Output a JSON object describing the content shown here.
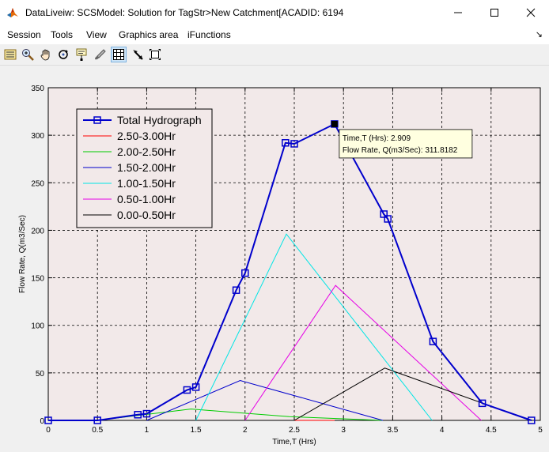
{
  "window": {
    "title": "DataLiveiw: SCSModel: Solution for TagStr>New Catchment[ACADID: 6194",
    "minimize_icon": "minimize-icon",
    "maximize_icon": "maximize-icon",
    "close_icon": "close-icon"
  },
  "menu": {
    "items": [
      "Session",
      "Tools",
      "View",
      "Graphics area",
      "iFunctions"
    ],
    "arrow": "↘"
  },
  "toolbar": {
    "icons": [
      "list-icon",
      "zoom-in-icon",
      "pan-hand-icon",
      "rotate-icon",
      "data-cursor-icon",
      "brush-icon",
      "grid-icon",
      "select-arrow-icon",
      "fit-icon"
    ],
    "active": "grid-icon"
  },
  "colors": {
    "plot_bg": "#f2e9e9",
    "total": "#0000cc"
  },
  "chart_data": {
    "type": "line",
    "xlabel": "Time,T (Hrs)",
    "ylabel": "Flow Rate, Q(m3/Sec)",
    "xlim": [
      0,
      5
    ],
    "ylim": [
      0,
      350
    ],
    "xticks": [
      0,
      0.5,
      1,
      1.5,
      2,
      2.5,
      3,
      3.5,
      4,
      4.5,
      5
    ],
    "yticks": [
      0,
      50,
      100,
      150,
      200,
      250,
      300,
      350
    ],
    "grid": true,
    "legend_position": "top-left",
    "series": [
      {
        "name": "Total Hydrograph",
        "color": "#0000cc",
        "marker": "square",
        "x": [
          0,
          0.5,
          0.91,
          1.0,
          1.41,
          1.5,
          1.91,
          2.0,
          2.41,
          2.5,
          2.909,
          3.41,
          3.45,
          3.91,
          4.41,
          4.91
        ],
        "y": [
          0,
          0,
          6,
          7,
          32,
          35,
          137,
          155,
          292,
          291,
          311.8182,
          217,
          212,
          83,
          18,
          0
        ]
      },
      {
        "name": "2.50-3.00Hr",
        "color": "#ff0000",
        "x": [
          2.5,
          2.91
        ],
        "y": [
          0,
          0
        ]
      },
      {
        "name": "2.00-2.50Hr",
        "color": "#00cc00",
        "x": [
          0.5,
          1.45,
          2.45,
          3.4
        ],
        "y": [
          0,
          12,
          4,
          0
        ]
      },
      {
        "name": "1.50-2.00Hr",
        "color": "#0000cc",
        "x": [
          1.0,
          1.95,
          3.4
        ],
        "y": [
          0,
          42,
          0
        ]
      },
      {
        "name": "1.00-1.50Hr",
        "color": "#00e5e5",
        "x": [
          1.5,
          2.42,
          3.9
        ],
        "y": [
          0,
          196,
          0
        ]
      },
      {
        "name": "0.50-1.00Hr",
        "color": "#e600e6",
        "x": [
          2.0,
          2.92,
          4.4
        ],
        "y": [
          0,
          142,
          0
        ]
      },
      {
        "name": "0.00-0.50Hr",
        "color": "#000000",
        "x": [
          2.5,
          3.42,
          4.9
        ],
        "y": [
          0,
          55,
          0
        ]
      }
    ],
    "datatip": {
      "x": 2.909,
      "y": 311.8182,
      "line1": "Time,T (Hrs): 2.909",
      "line2": "Flow Rate, Q(m3/Sec): 311.8182"
    }
  }
}
